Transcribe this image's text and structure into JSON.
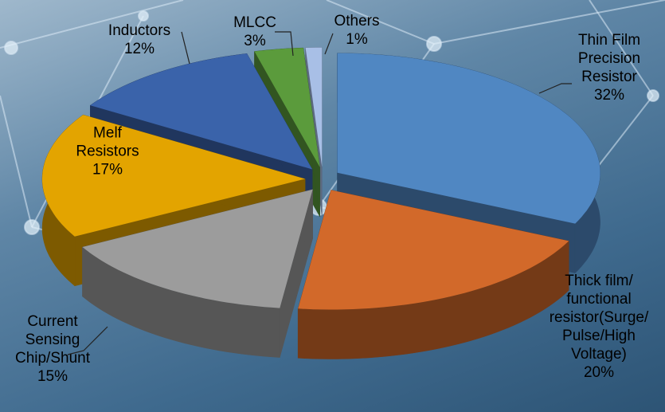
{
  "chart_data": {
    "type": "pie",
    "categories": [
      "Thin Film Precision Resistor",
      "Thick film/ functional resistor(Surge/Pulse/High Voltage)",
      "Current Sensing Chip/Shunt",
      "Melf Resistors",
      "Inductors",
      "MLCC",
      "Others"
    ],
    "values": [
      32,
      20,
      15,
      17,
      12,
      3,
      1
    ],
    "value_labels": [
      "32%",
      "20%",
      "15%",
      "17%",
      "12%",
      "3%",
      "1%"
    ],
    "colors": [
      "#5087c2",
      "#d2692a",
      "#9c9c9c",
      "#e3a400",
      "#3a63aa",
      "#5b9b3c",
      "#a8bfe6"
    ]
  }
}
